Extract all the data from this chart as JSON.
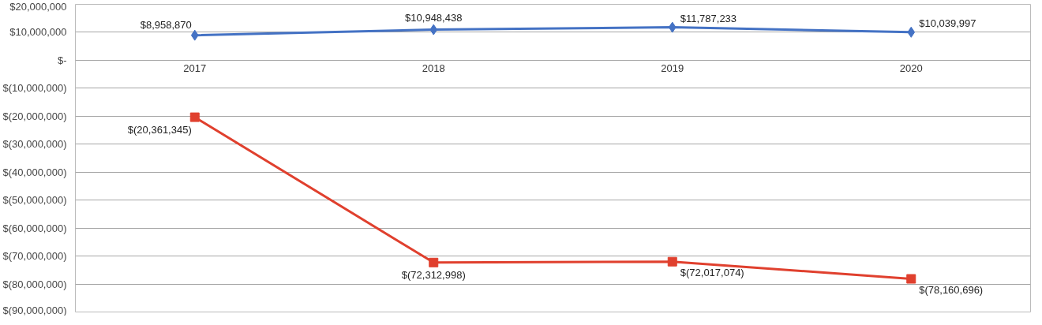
{
  "chart_data": {
    "type": "line",
    "categories": [
      "2017",
      "2018",
      "2019",
      "2020"
    ],
    "ylim": [
      -90000000,
      20000000
    ],
    "yticks": [
      {
        "value": 20000000,
        "label": "$20,000,000"
      },
      {
        "value": 10000000,
        "label": "$10,000,000"
      },
      {
        "value": 0,
        "label": "$-"
      },
      {
        "value": -10000000,
        "label": "$(10,000,000)"
      },
      {
        "value": -20000000,
        "label": "$(20,000,000)"
      },
      {
        "value": -30000000,
        "label": "$(30,000,000)"
      },
      {
        "value": -40000000,
        "label": "$(40,000,000)"
      },
      {
        "value": -50000000,
        "label": "$(50,000,000)"
      },
      {
        "value": -60000000,
        "label": "$(60,000,000)"
      },
      {
        "value": -70000000,
        "label": "$(70,000,000)"
      },
      {
        "value": -80000000,
        "label": "$(80,000,000)"
      },
      {
        "value": -90000000,
        "label": "$(90,000,000)"
      }
    ],
    "grid": "y",
    "line_style": "solid",
    "series": [
      {
        "color": "#4472c4",
        "marker": "diamond",
        "values": [
          8958870,
          10948438,
          11787233,
          10039997
        ],
        "value_labels": [
          "$8,958,870",
          "$10,948,438",
          "$11,787,233",
          "$10,039,997"
        ]
      },
      {
        "color": "#e0402e",
        "marker": "square",
        "values": [
          -20361345,
          -72312998,
          -72017074,
          -78160696
        ],
        "value_labels": [
          "$(20,361,345)",
          "$(72,312,998)",
          "$(72,017,074)",
          "$(78,160,696)"
        ]
      }
    ]
  }
}
